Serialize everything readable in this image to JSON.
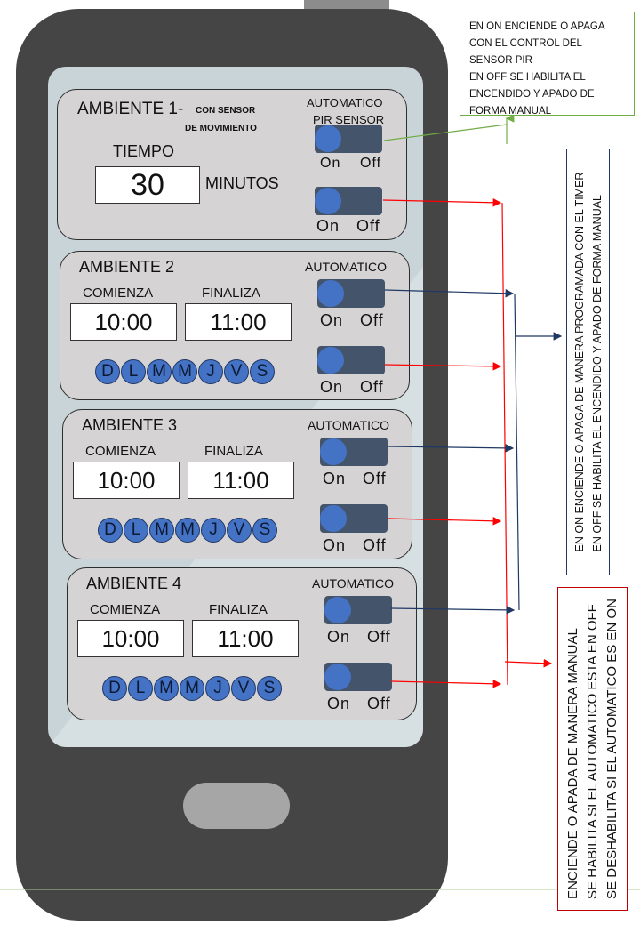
{
  "notes": {
    "pir": [
      "EN ON ENCIENDE O APAGA",
      "CON EL CONTROL DEL",
      "SENSOR PIR",
      "EN OFF SE HABILITA EL",
      "ENCENDIDO Y APADO DE",
      "FORMA MANUAL"
    ],
    "timer": [
      "EN ON ENCIENDE O APAGA DE MANERA PROGRAMADA CON EL TIMER",
      "EN OFF SE HABILITA EL ENCENDIDO Y APADO DE FORMA MANUAL"
    ],
    "manual": [
      "ENCIENDE O APADA DE MANERA MANUAL",
      "SE HABILITA SI EL AUTOMATICO ESTA EN OFF",
      "SE DESHABILITA SI EL AUTOMATICO ES EN ON"
    ]
  },
  "ambiente1": {
    "title": "AMBIENTE 1-",
    "subtitle_line1": "CON SENSOR",
    "subtitle_line2": "DE MOVIMIENTO",
    "tiempo_label": "TIEMPO",
    "tiempo_value": "30",
    "minutos_label": "MINUTOS",
    "auto_label_line1": "AUTOMATICO",
    "auto_label_line2": "PIR SENSOR",
    "on": "On",
    "off": "Off"
  },
  "ambientes": [
    {
      "title": "AMBIENTE 2",
      "comienza": "COMIENZA",
      "finaliza": "FINALIZA",
      "start": "10:00",
      "end": "11:00",
      "auto": "AUTOMATICO",
      "on": "On",
      "off": "Off"
    },
    {
      "title": "AMBIENTE 3",
      "comienza": "COMIENZA",
      "finaliza": "FINALIZA",
      "start": "10:00",
      "end": "11:00",
      "auto": "AUTOMATICO",
      "on": "On",
      "off": "Off"
    },
    {
      "title": "AMBIENTE 4",
      "comienza": "COMIENZA",
      "finaliza": "FINALIZA",
      "start": "10:00",
      "end": "11:00",
      "auto": "AUTOMATICO",
      "on": "On",
      "off": "Off"
    }
  ],
  "days": [
    "D",
    "L",
    "M",
    "M",
    "J",
    "V",
    "S"
  ],
  "colors": {
    "toggle_track": "#44546a",
    "toggle_knob": "#4472c4",
    "arrow_red": "#ff0000",
    "arrow_blue": "#1f3864",
    "arrow_green": "#70ad47"
  }
}
